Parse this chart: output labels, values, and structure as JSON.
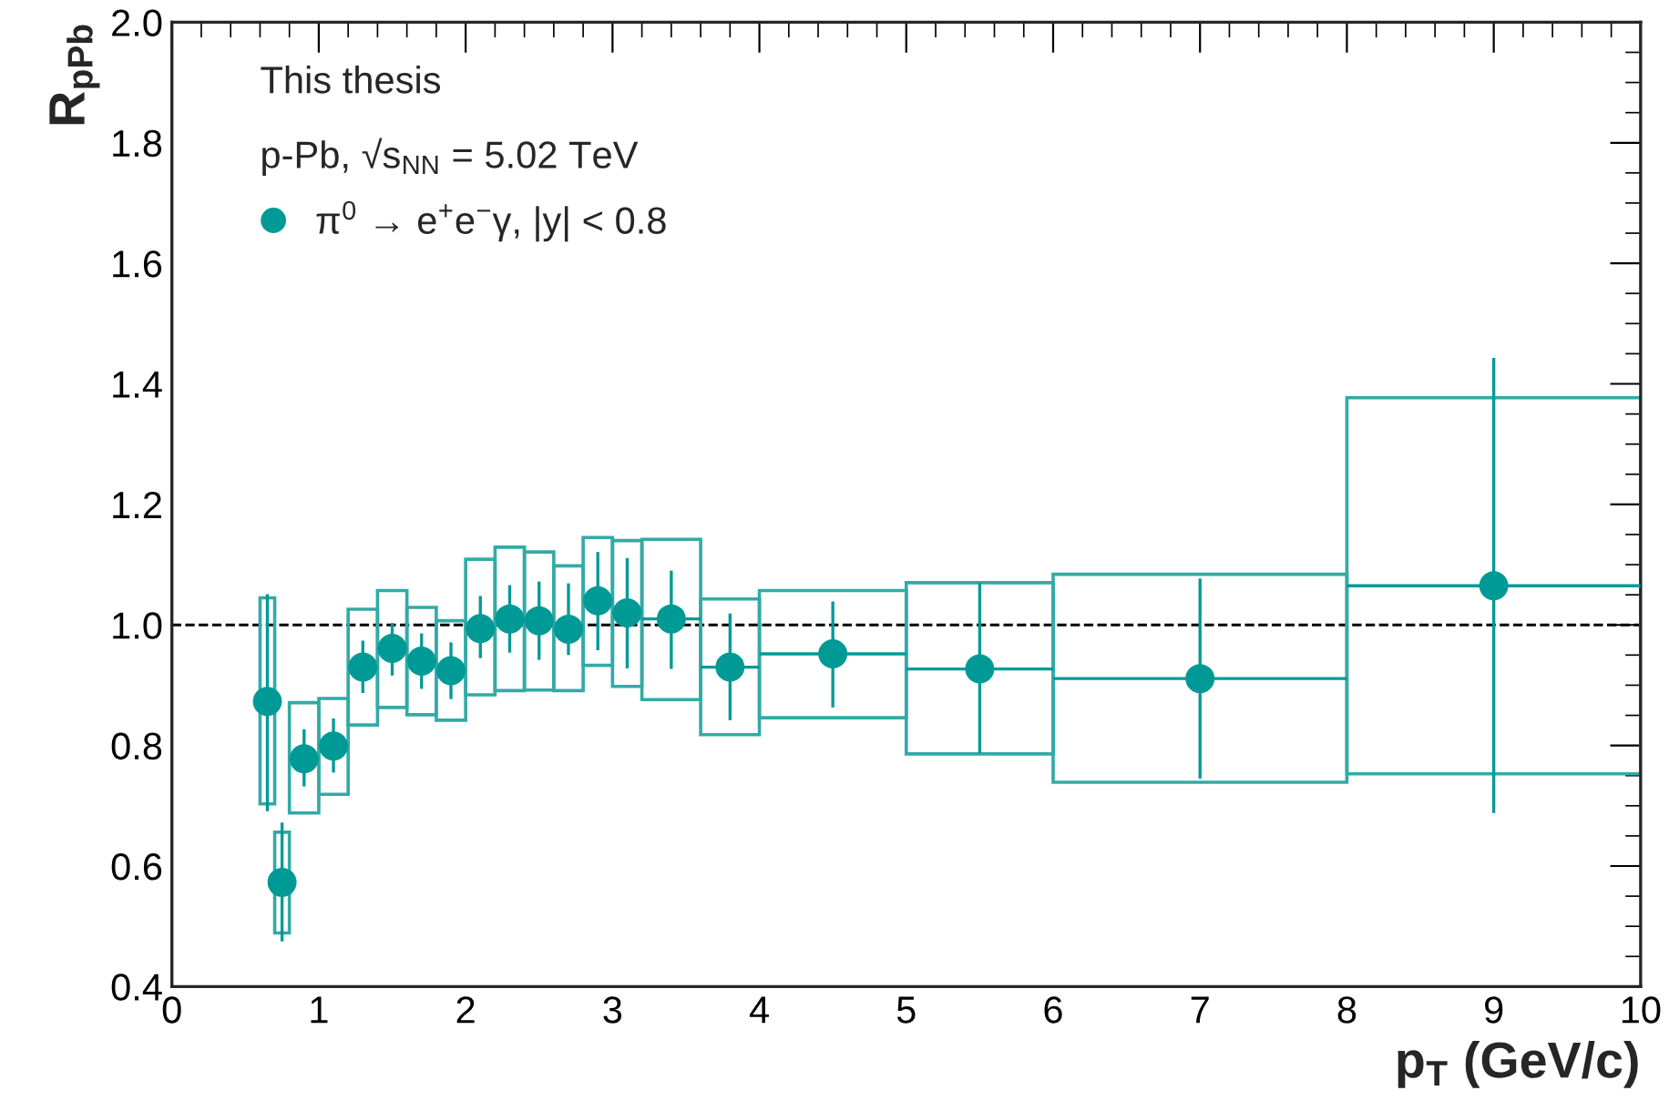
{
  "chart_data": {
    "type": "scatter",
    "xlabel": "p$_{T}$ (GeV/c)",
    "ylabel": "R$_{pPb}$",
    "annotations": [
      "This thesis",
      "p-Pb, √s$_{NN}$ = 5.02 TeV"
    ],
    "xlim": [
      0,
      10
    ],
    "xticks": [
      0,
      1,
      2,
      3,
      4,
      5,
      6,
      7,
      8,
      9,
      10
    ],
    "ylim": [
      0.4,
      2.0
    ],
    "yticks": [
      0.4,
      0.6,
      0.8,
      {
        "value": 1,
        "label": "1.0"
      },
      1.2,
      1.4,
      1.6,
      1.8,
      {
        "value": 2,
        "label": "2.0"
      }
    ],
    "grid": false,
    "legend": "top left",
    "marker": "circle",
    "ref_lines": [
      {
        "axis": "y",
        "value": 1.0,
        "color": "#000000",
        "line_style": "dashed"
      }
    ],
    "series": [
      {
        "name": "π$^{0}$ → e$^{+}$e$^{−}$γ, |y| < 0.8",
        "color": "#009a96",
        "x": [
          0.65,
          0.75,
          0.9,
          1.1,
          1.3,
          1.5,
          1.7,
          1.9,
          2.1,
          2.3,
          2.5,
          2.7,
          2.9,
          3.1,
          3.4,
          3.8,
          4.5,
          5.5,
          7,
          9
        ],
        "values": [
          0.873,
          0.573,
          0.778,
          0.799,
          0.93,
          0.961,
          0.94,
          0.924,
          0.994,
          1.01,
          1.007,
          0.993,
          1.04,
          1.02,
          1.01,
          0.93,
          0.952,
          0.927,
          0.911,
          1.065
        ],
        "xerrors": [
          0.05,
          0.05,
          0.1,
          0.1,
          0.1,
          0.1,
          0.1,
          0.1,
          0.1,
          0.1,
          0.1,
          0.1,
          0.1,
          0.1,
          0.2,
          0.2,
          0.5,
          0.5,
          1,
          1
        ],
        "errors": [
          [
            0.691,
            1.051
          ],
          [
            0.475,
            0.672
          ],
          [
            0.732,
            0.827
          ],
          [
            0.755,
            0.845
          ],
          [
            0.887,
            0.974
          ],
          [
            0.916,
            1.003
          ],
          [
            0.894,
            0.986
          ],
          [
            0.877,
            0.971
          ],
          [
            0.945,
            1.048
          ],
          [
            0.954,
            1.066
          ],
          [
            0.942,
            1.072
          ],
          [
            0.95,
            1.069
          ],
          [
            0.958,
            1.121
          ],
          [
            0.928,
            1.111
          ],
          [
            0.927,
            1.09
          ],
          [
            0.842,
            1.019
          ],
          [
            0.863,
            1.039
          ],
          [
            0.787,
            1.07
          ],
          [
            0.745,
            1.077
          ],
          [
            0.688,
            1.443
          ]
        ]
      },
      {
        "type": "bar",
        "color": "#33aaa6",
        "x": [
          0.65,
          0.75,
          0.9,
          1.1,
          1.3,
          1.5,
          1.7,
          1.9,
          2.1,
          2.3,
          2.5,
          2.7,
          2.9,
          3.1,
          3.4,
          3.8,
          4.5,
          5.5,
          7,
          9
        ],
        "base": [
          0.703,
          0.489,
          0.688,
          0.719,
          0.834,
          0.863,
          0.851,
          0.842,
          0.884,
          0.891,
          0.892,
          0.891,
          0.933,
          0.898,
          0.876,
          0.818,
          0.846,
          0.786,
          0.739,
          0.753
        ],
        "values": [
          0.342,
          0.167,
          0.183,
          0.159,
          0.192,
          0.194,
          0.178,
          0.165,
          0.225,
          0.238,
          0.229,
          0.207,
          0.212,
          0.242,
          0.266,
          0.225,
          0.211,
          0.284,
          0.345,
          0.624
        ]
      }
    ]
  }
}
